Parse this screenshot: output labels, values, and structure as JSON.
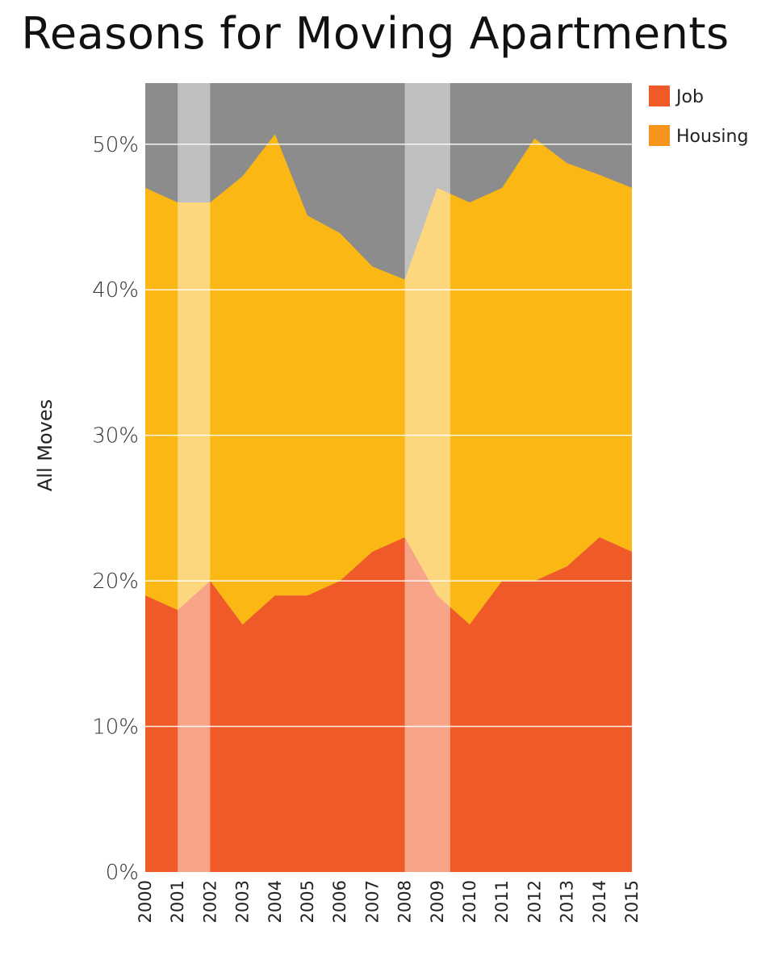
{
  "chart_data": {
    "type": "area",
    "stacked": true,
    "title": "Reasons for Moving Apartments",
    "ylabel": "All Moves",
    "xlabel": "",
    "x": [
      2000,
      2001,
      2002,
      2003,
      2004,
      2005,
      2006,
      2007,
      2008,
      2009,
      2010,
      2011,
      2012,
      2013,
      2014,
      2015
    ],
    "x_tick_labels": [
      "2000",
      "2001",
      "2002",
      "2003",
      "2004",
      "2005",
      "2006",
      "2007",
      "2008",
      "2009",
      "2010",
      "2011",
      "2012",
      "2013",
      "2014",
      "2015"
    ],
    "ylim": [
      0,
      54.2
    ],
    "y_ticks": [
      0,
      10,
      20,
      30,
      40,
      50
    ],
    "y_tick_labels": [
      "0%",
      "10%",
      "20%",
      "30%",
      "40%",
      "50%"
    ],
    "series": [
      {
        "name": "Job",
        "color": "#f05a28",
        "values": [
          19,
          18,
          20,
          17,
          19,
          19,
          20,
          22,
          23,
          19,
          17,
          20,
          20,
          21,
          23,
          22
        ]
      },
      {
        "name": "Housing",
        "color": "#fbb714",
        "values": [
          28,
          28,
          26,
          30.8,
          31.7,
          26.1,
          23.9,
          19.6,
          17.7,
          28,
          29,
          27,
          30.4,
          27.7,
          24.9,
          25
        ]
      }
    ],
    "background_color": "#8c8c8c",
    "shaded_periods": [
      {
        "start": 2001,
        "end": 2002
      },
      {
        "start": 2008,
        "end": 2009.4
      }
    ],
    "grid": true,
    "legend_position": "top-right"
  }
}
